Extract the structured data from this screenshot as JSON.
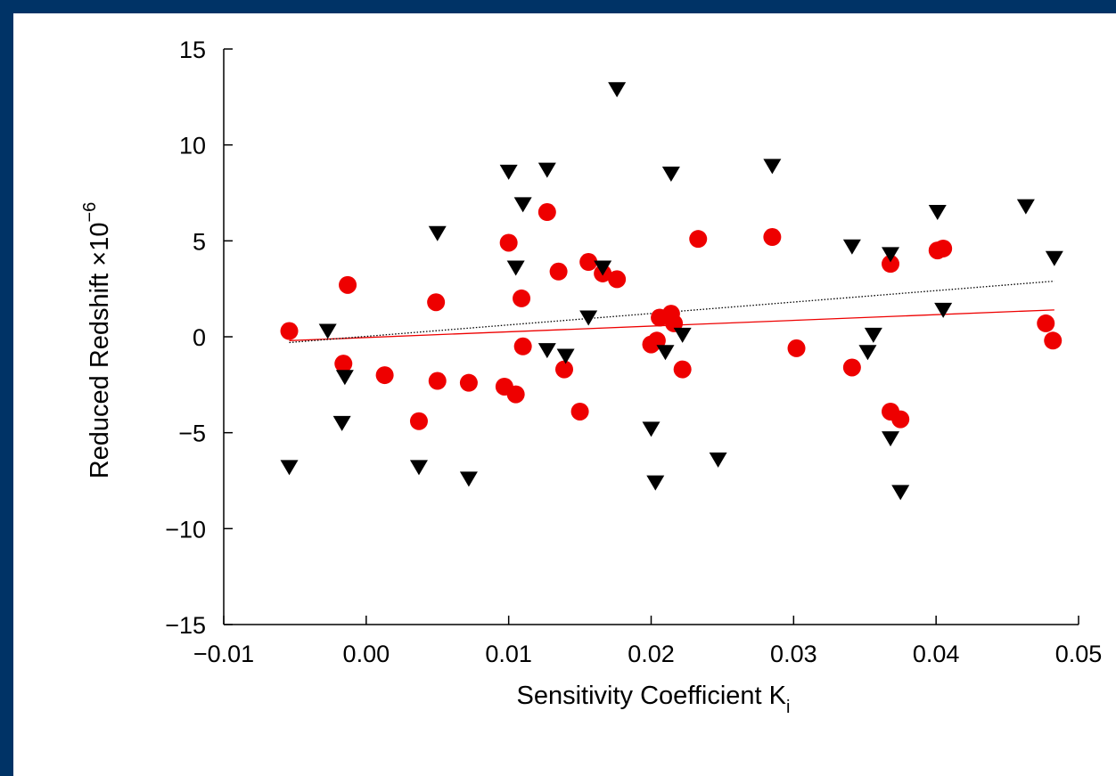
{
  "colors": {
    "frame": "#003366",
    "background": "#ffffff",
    "red_points": "#ee0000",
    "black_points": "#000000",
    "red_fit": "#ee0000",
    "black_fit": "#000000"
  },
  "chart_data": {
    "type": "scatter",
    "title": "",
    "xlabel": "Sensitivity Coefficient K",
    "xlabel_subscript": "i",
    "ylabel": "Reduced Redshift ×10",
    "ylabel_superscript": "−6",
    "xlim": [
      -0.01,
      0.05
    ],
    "ylim": [
      -15,
      15
    ],
    "x_ticks": [
      -0.01,
      0.0,
      0.01,
      0.02,
      0.03,
      0.04,
      0.05
    ],
    "x_tick_labels": [
      "−0.01",
      "0.00",
      "0.01",
      "0.02",
      "0.03",
      "0.04",
      "0.05"
    ],
    "y_ticks": [
      -15,
      -10,
      -5,
      0,
      5,
      10,
      15
    ],
    "y_tick_labels": [
      "−15",
      "−10",
      "−5",
      "0",
      "5",
      "10",
      "15"
    ],
    "grid": false,
    "legend": false,
    "series": [
      {
        "marker": "circle",
        "color": "#ee0000",
        "points": [
          [
            -0.0054,
            0.3
          ],
          [
            -0.0016,
            -1.4
          ],
          [
            -0.0013,
            2.7
          ],
          [
            0.0013,
            -2.0
          ],
          [
            0.0037,
            -4.4
          ],
          [
            0.0049,
            1.8
          ],
          [
            0.005,
            -2.3
          ],
          [
            0.0072,
            -2.4
          ],
          [
            0.0097,
            -2.6
          ],
          [
            0.01,
            4.9
          ],
          [
            0.0105,
            -3.0
          ],
          [
            0.0109,
            2.0
          ],
          [
            0.011,
            -0.5
          ],
          [
            0.0127,
            6.5
          ],
          [
            0.0135,
            3.4
          ],
          [
            0.0139,
            -1.7
          ],
          [
            0.015,
            -3.9
          ],
          [
            0.0156,
            3.9
          ],
          [
            0.0166,
            3.3
          ],
          [
            0.0176,
            3.0
          ],
          [
            0.02,
            -0.4
          ],
          [
            0.0204,
            -0.2
          ],
          [
            0.0206,
            1.0
          ],
          [
            0.0214,
            1.2
          ],
          [
            0.0216,
            0.7
          ],
          [
            0.0222,
            -1.7
          ],
          [
            0.0233,
            5.1
          ],
          [
            0.0285,
            5.2
          ],
          [
            0.0302,
            -0.6
          ],
          [
            0.0341,
            -1.6
          ],
          [
            0.0368,
            3.8
          ],
          [
            0.0368,
            -3.9
          ],
          [
            0.0375,
            -4.3
          ],
          [
            0.0401,
            4.5
          ],
          [
            0.0405,
            4.6
          ],
          [
            0.0477,
            0.7
          ],
          [
            0.0482,
            -0.2
          ]
        ]
      },
      {
        "marker": "triangle-down",
        "color": "#000000",
        "points": [
          [
            -0.0054,
            -6.8
          ],
          [
            -0.0027,
            0.3
          ],
          [
            -0.0015,
            -2.1
          ],
          [
            -0.0017,
            -4.5
          ],
          [
            0.0037,
            -6.8
          ],
          [
            0.005,
            5.4
          ],
          [
            0.0072,
            -7.4
          ],
          [
            0.01,
            8.6
          ],
          [
            0.0105,
            3.6
          ],
          [
            0.011,
            6.9
          ],
          [
            0.0127,
            8.7
          ],
          [
            0.0127,
            -0.7
          ],
          [
            0.014,
            -1.0
          ],
          [
            0.0156,
            1.0
          ],
          [
            0.0166,
            3.6
          ],
          [
            0.0176,
            12.9
          ],
          [
            0.02,
            -4.8
          ],
          [
            0.0203,
            -7.6
          ],
          [
            0.021,
            -0.8
          ],
          [
            0.0214,
            8.5
          ],
          [
            0.0222,
            0.1
          ],
          [
            0.0247,
            -6.4
          ],
          [
            0.0285,
            8.9
          ],
          [
            0.0341,
            4.7
          ],
          [
            0.0352,
            -0.8
          ],
          [
            0.0356,
            0.1
          ],
          [
            0.0368,
            -5.3
          ],
          [
            0.0368,
            4.3
          ],
          [
            0.0375,
            -8.1
          ],
          [
            0.0401,
            6.5
          ],
          [
            0.0405,
            1.4
          ],
          [
            0.0463,
            6.8
          ],
          [
            0.0483,
            4.1
          ]
        ]
      }
    ],
    "fit_lines": [
      {
        "color": "#ee0000",
        "style": "solid",
        "x": [
          -0.0054,
          0.0483
        ],
        "y": [
          -0.2,
          1.4
        ]
      },
      {
        "color": "#000000",
        "style": "dotted",
        "x": [
          -0.0054,
          0.0483
        ],
        "y": [
          -0.3,
          2.9
        ]
      }
    ]
  }
}
